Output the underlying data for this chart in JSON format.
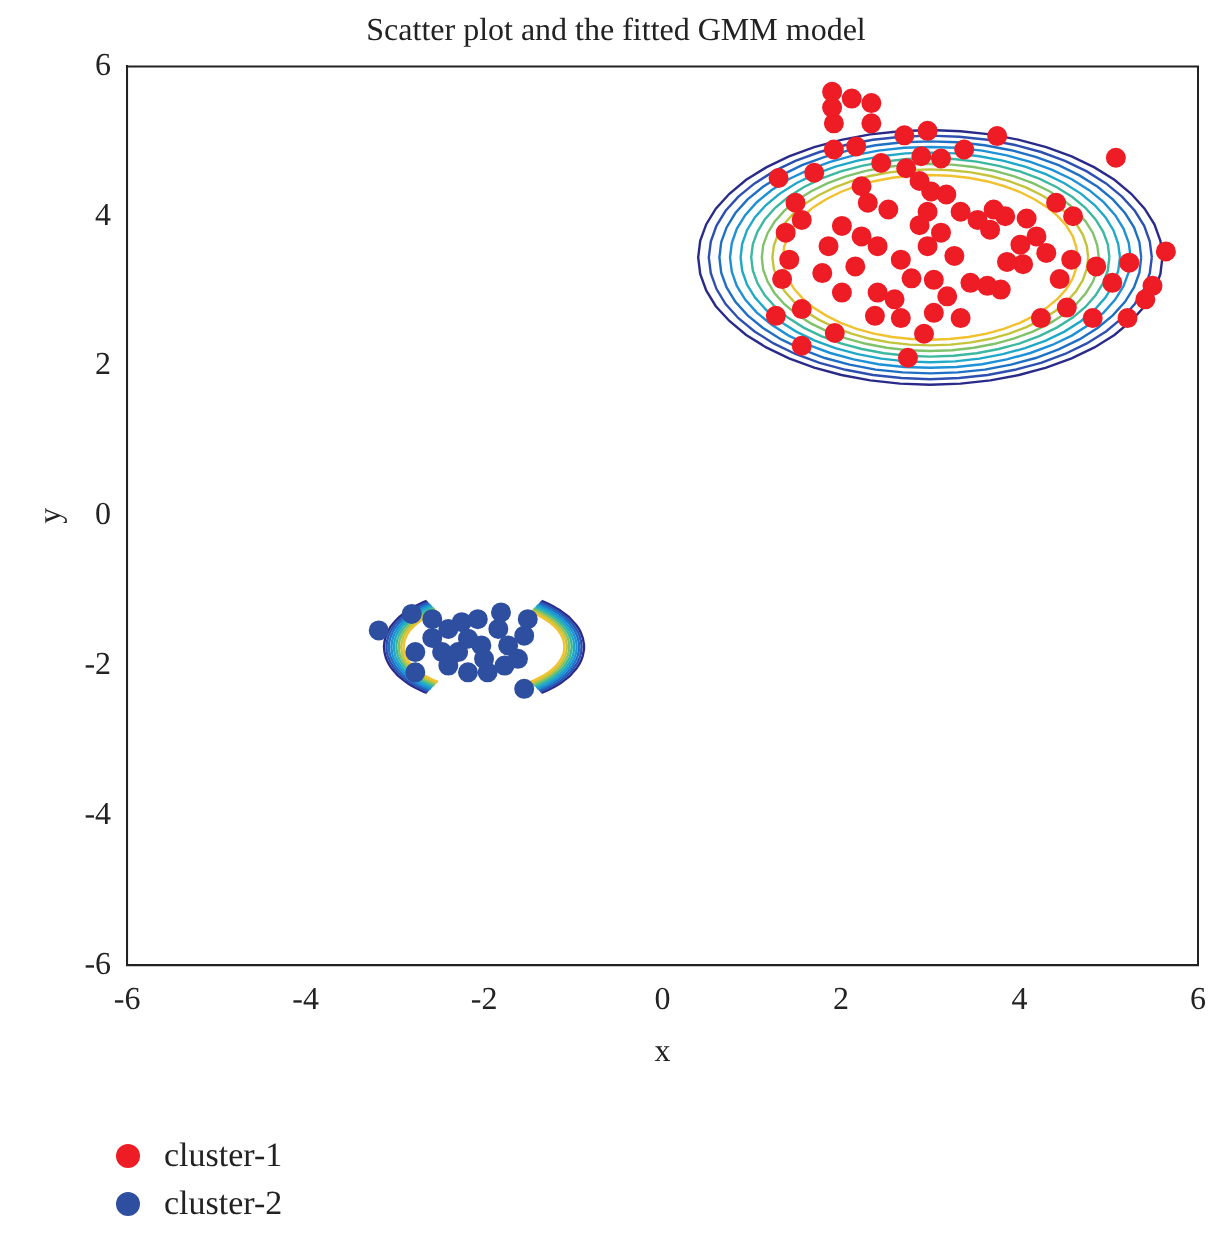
{
  "chart_data": {
    "type": "scatter",
    "title": "Scatter plot and the fitted GMM model",
    "xlabel": "x",
    "ylabel": "y",
    "xlim": [
      -6,
      6
    ],
    "xticks": [
      -6,
      -4,
      -2,
      0,
      2,
      4,
      6
    ],
    "ylim": [
      -6,
      6
    ],
    "yticks": [
      -6,
      -4,
      -2,
      0,
      2,
      4,
      6
    ],
    "grid": false,
    "legend": "bottom left",
    "marker": "circle",
    "series": [
      {
        "name": "cluster-1",
        "color": "#ee1c25",
        "x": [
          1.9,
          2.12,
          2.34,
          1.9,
          2.34,
          1.92,
          2.71,
          2.97,
          3.75,
          5.08,
          3.38,
          1.92,
          2.17,
          2.9,
          3.12,
          1.3,
          1.7,
          2.45,
          2.73,
          2.23,
          2.3,
          2.53,
          2.88,
          3.01,
          3.18,
          2.97,
          2.88,
          3.34,
          3.53,
          3.71,
          3.84,
          3.67,
          4.08,
          4.41,
          4.6,
          4.19,
          4.01,
          3.86,
          4.04,
          3.79,
          4.3,
          4.45,
          4.58,
          4.86,
          5.23,
          5.64,
          5.04,
          5.49,
          5.41,
          5.21,
          4.82,
          4.53,
          4.24,
          1.49,
          1.56,
          1.38,
          1.42,
          1.34,
          1.27,
          1.56,
          1.56,
          1.93,
          1.86,
          2.01,
          1.79,
          2.23,
          2.16,
          2.01,
          2.41,
          2.41,
          2.6,
          2.67,
          2.75,
          2.67,
          2.79,
          3.04,
          3.19,
          3.34,
          3.45,
          3.64,
          3.04,
          2.97,
          3.27,
          3.12,
          2.38,
          2.93
        ],
        "values": [
          5.66,
          5.57,
          5.51,
          5.45,
          5.24,
          5.24,
          5.08,
          5.14,
          5.07,
          4.78,
          4.89,
          4.89,
          4.93,
          4.8,
          4.77,
          4.51,
          4.58,
          4.71,
          4.64,
          4.4,
          4.18,
          4.09,
          4.47,
          4.33,
          4.29,
          4.06,
          3.88,
          4.06,
          3.95,
          4.09,
          4.0,
          3.82,
          3.97,
          4.18,
          4.0,
          3.73,
          3.62,
          3.39,
          3.36,
          3.02,
          3.51,
          3.16,
          3.42,
          3.33,
          3.38,
          3.53,
          3.11,
          3.07,
          2.89,
          2.64,
          2.64,
          2.78,
          2.64,
          4.18,
          3.95,
          3.78,
          3.42,
          3.16,
          2.67,
          2.76,
          2.27,
          2.44,
          3.6,
          3.87,
          3.24,
          3.73,
          3.33,
          2.98,
          3.6,
          2.98,
          2.89,
          2.64,
          2.11,
          3.42,
          3.17,
          3.15,
          2.93,
          2.64,
          3.11,
          3.07,
          2.71,
          3.6,
          3.47,
          3.78,
          2.67,
          2.43
        ]
      },
      {
        "name": "cluster-2",
        "color": "#2e4fa0",
        "x": [
          -3.18,
          -2.81,
          -2.58,
          -2.77,
          -2.58,
          -2.77,
          -2.4,
          -2.25,
          -2.07,
          -1.81,
          -1.84,
          -2.03,
          -2.29,
          -2.4,
          -2.18,
          -1.96,
          -2.0,
          -1.73,
          -1.55,
          -1.51,
          -1.62,
          -1.77,
          -1.55,
          -2.18,
          -2.47
        ],
        "values": [
          -1.53,
          -1.31,
          -1.38,
          -1.82,
          -1.63,
          -2.09,
          -1.51,
          -1.42,
          -1.38,
          -1.29,
          -1.51,
          -1.73,
          -1.82,
          -2.0,
          -2.09,
          -2.09,
          -1.91,
          -1.73,
          -1.6,
          -1.38,
          -1.91,
          -2.0,
          -2.31,
          -1.64,
          -1.82
        ]
      }
    ]
  }
}
